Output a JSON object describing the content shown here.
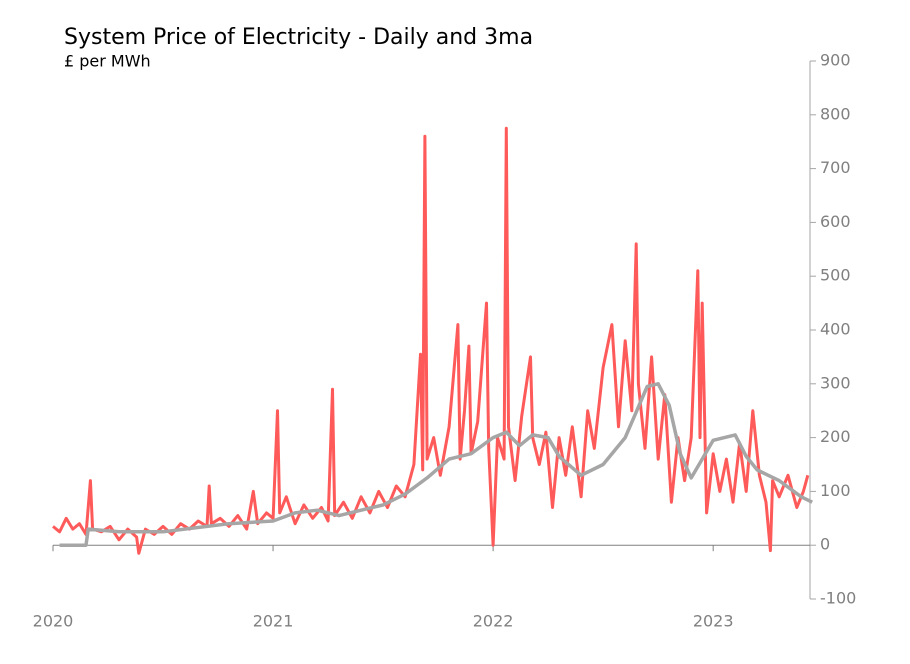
{
  "chart_data": {
    "type": "line",
    "title": "System Price of Electricity - Daily and 3ma",
    "subtitle": "£ per MWh",
    "xlim": [
      2020,
      2023.44
    ],
    "xticks": [
      2020,
      2021,
      2022,
      2023
    ],
    "ylim": [
      -100,
      900
    ],
    "yticks": [
      -100,
      0,
      100,
      200,
      300,
      400,
      500,
      600,
      700,
      800,
      900
    ],
    "series": [
      {
        "color": "#ff5a5a",
        "x": [
          2020.0,
          2020.03,
          2020.06,
          2020.09,
          2020.12,
          2020.15,
          2020.17,
          2020.18,
          2020.22,
          2020.26,
          2020.3,
          2020.34,
          2020.38,
          2020.39,
          2020.42,
          2020.46,
          2020.5,
          2020.54,
          2020.58,
          2020.62,
          2020.66,
          2020.7,
          2020.71,
          2020.72,
          2020.76,
          2020.8,
          2020.84,
          2020.88,
          2020.91,
          2020.93,
          2020.97,
          2021.0,
          2021.02,
          2021.03,
          2021.06,
          2021.1,
          2021.14,
          2021.18,
          2021.22,
          2021.25,
          2021.27,
          2021.28,
          2021.32,
          2021.36,
          2021.4,
          2021.44,
          2021.48,
          2021.52,
          2021.56,
          2021.6,
          2021.64,
          2021.67,
          2021.68,
          2021.69,
          2021.7,
          2021.73,
          2021.76,
          2021.8,
          2021.84,
          2021.85,
          2021.87,
          2021.89,
          2021.9,
          2021.93,
          2021.97,
          2021.98,
          2022.0,
          2022.02,
          2022.05,
          2022.06,
          2022.07,
          2022.1,
          2022.13,
          2022.17,
          2022.18,
          2022.21,
          2022.24,
          2022.27,
          2022.3,
          2022.33,
          2022.36,
          2022.4,
          2022.43,
          2022.46,
          2022.5,
          2022.54,
          2022.57,
          2022.6,
          2022.63,
          2022.65,
          2022.66,
          2022.69,
          2022.72,
          2022.75,
          2022.78,
          2022.81,
          2022.84,
          2022.87,
          2022.9,
          2022.93,
          2022.94,
          2022.95,
          2022.97,
          2023.0,
          2023.03,
          2023.06,
          2023.09,
          2023.12,
          2023.15,
          2023.18,
          2023.21,
          2023.24,
          2023.26,
          2023.27,
          2023.3,
          2023.34,
          2023.38,
          2023.41,
          2023.43
        ],
        "values": [
          35,
          25,
          50,
          30,
          40,
          20,
          120,
          30,
          25,
          35,
          10,
          30,
          15,
          -15,
          30,
          20,
          35,
          20,
          40,
          30,
          45,
          35,
          110,
          40,
          50,
          35,
          55,
          30,
          100,
          40,
          60,
          50,
          250,
          60,
          90,
          40,
          75,
          50,
          70,
          45,
          290,
          55,
          80,
          50,
          90,
          60,
          100,
          70,
          110,
          90,
          150,
          355,
          140,
          760,
          160,
          200,
          130,
          220,
          410,
          160,
          250,
          370,
          170,
          230,
          450,
          180,
          0,
          200,
          160,
          775,
          220,
          120,
          240,
          350,
          200,
          150,
          210,
          70,
          200,
          130,
          220,
          90,
          250,
          180,
          330,
          410,
          220,
          380,
          250,
          560,
          300,
          180,
          350,
          160,
          280,
          80,
          200,
          120,
          200,
          510,
          200,
          450,
          60,
          170,
          100,
          160,
          80,
          190,
          100,
          250,
          130,
          80,
          -10,
          120,
          90,
          130,
          70,
          100,
          130
        ]
      },
      {
        "color": "#a6a6a6",
        "x": [
          2020.03,
          2020.15,
          2020.16,
          2020.3,
          2020.5,
          2020.7,
          2020.8,
          2021.0,
          2021.1,
          2021.2,
          2021.3,
          2021.4,
          2021.5,
          2021.6,
          2021.7,
          2021.8,
          2021.9,
          2022.0,
          2022.06,
          2022.12,
          2022.18,
          2022.25,
          2022.3,
          2022.4,
          2022.5,
          2022.6,
          2022.7,
          2022.75,
          2022.8,
          2022.85,
          2022.9,
          2022.95,
          2023.0,
          2023.1,
          2023.15,
          2023.2,
          2023.25,
          2023.3,
          2023.4,
          2023.45
        ],
        "values": [
          0,
          0,
          30,
          25,
          25,
          35,
          40,
          45,
          60,
          65,
          55,
          65,
          75,
          95,
          125,
          160,
          170,
          200,
          210,
          185,
          205,
          200,
          165,
          130,
          150,
          200,
          295,
          300,
          260,
          170,
          125,
          160,
          195,
          205,
          165,
          140,
          130,
          120,
          90,
          80
        ]
      }
    ]
  }
}
